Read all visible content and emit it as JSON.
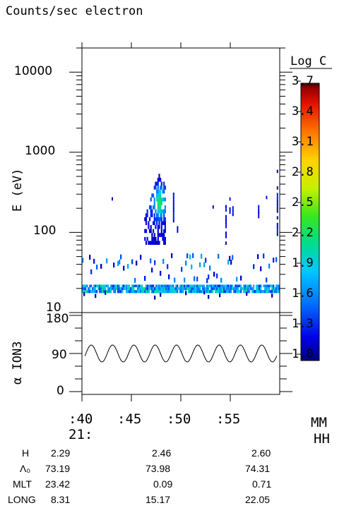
{
  "title": "Counts/sec electron",
  "chart_data": [
    {
      "type": "heatmap",
      "ylabel": "E (eV)",
      "yscale": "log",
      "ylim": [
        10,
        20000
      ],
      "yticks": [
        "10000",
        "1000",
        "100",
        "10"
      ],
      "colorbar": {
        "title": "Log C",
        "range": [
          0.95,
          3.7
        ],
        "ticks": [
          "3.7",
          "3.4",
          "3.1",
          "2.8",
          "2.5",
          "2.2",
          "1.9",
          "1.6",
          "1.3",
          "1.0"
        ]
      },
      "features": [
        {
          "description_x_min": 40,
          "x_range_min": [
            40,
            60
          ],
          "energy_eV": [
            18,
            22
          ],
          "logc": 1.7
        },
        {
          "x_range_min": [
            47.3,
            48.3
          ],
          "energy_eV": [
            80,
            480
          ],
          "logc_peak": 2.3
        }
      ]
    },
    {
      "type": "line",
      "ylabel": "α ION3",
      "ylim": [
        0,
        180
      ],
      "yticks": [
        "180",
        "90",
        "0"
      ],
      "series": [
        {
          "cycles": 9,
          "mean": 90,
          "amplitude": 20
        }
      ]
    }
  ],
  "time_axis": {
    "ticks": [
      ":40",
      ":45",
      ":50",
      ":55"
    ],
    "hour_label": "21:",
    "units_top": "MM",
    "units_bottom": "HH"
  },
  "ephemeris": {
    "rows": [
      {
        "label": "H",
        "values": [
          "2.29",
          "2.46",
          "2.60"
        ]
      },
      {
        "label": "Λ₀",
        "values": [
          "73.19",
          "73.98",
          "74.31"
        ]
      },
      {
        "label": "MLT",
        "values": [
          "23.42",
          "0.09",
          "0.71"
        ]
      },
      {
        "label": "LONG",
        "values": [
          "8.31",
          "15.17",
          "22.05"
        ]
      }
    ]
  }
}
